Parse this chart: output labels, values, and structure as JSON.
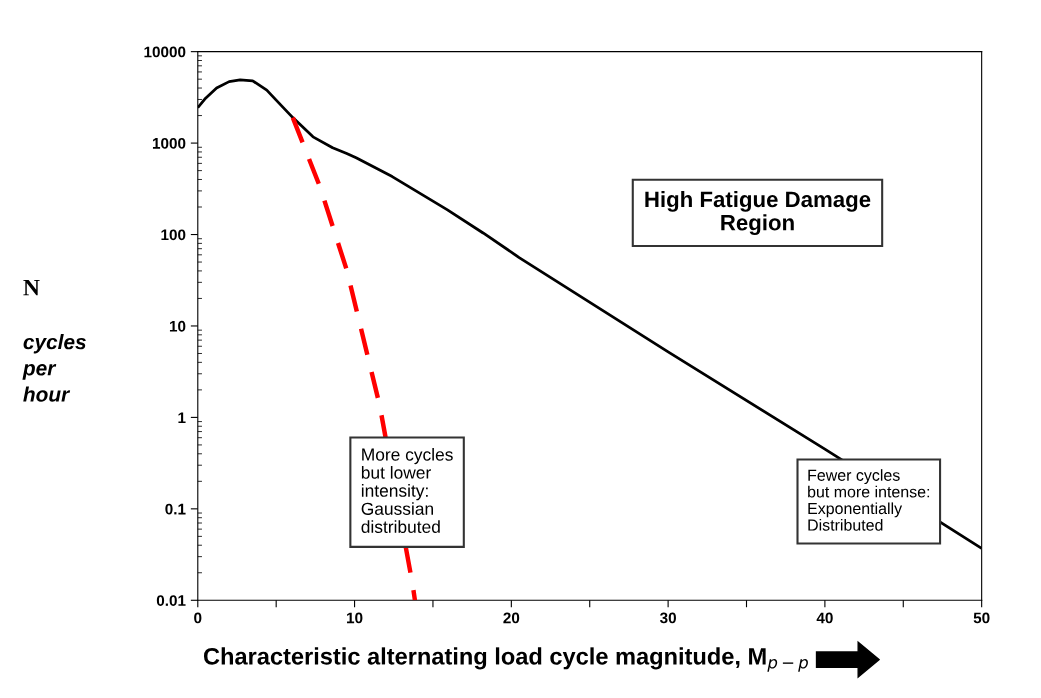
{
  "chart_data": {
    "type": "line",
    "xlabel": "Characteristic alternating load cycle magnitude, M$_{p−p}$",
    "ylabel": "N\ncycles\nper\nhour",
    "log": "y",
    "grid": false,
    "legend": false,
    "marker": "none",
    "xlim": [
      0,
      50
    ],
    "xticks": [
      0,
      {
        "value": 5,
        "label": null
      },
      10,
      {
        "value": 15,
        "label": null
      },
      20,
      {
        "value": 25,
        "label": null
      },
      30,
      {
        "value": 35,
        "label": null
      },
      40,
      {
        "value": 45,
        "label": null
      },
      50
    ],
    "ylim": [
      0.01,
      10000
    ],
    "yticks": [
      {
        "value": 0.01,
        "label": "0.01"
      },
      {
        "value": 0.1,
        "label": "0.1"
      },
      1,
      10,
      100,
      1000,
      10000
    ],
    "series": [
      {
        "color": "#000000",
        "line_style": "solid",
        "x": [
          0,
          0.5,
          1.2,
          2.0,
          2.7,
          3.5,
          4.4,
          5.0,
          6.06,
          7.35,
          8.6,
          9.5,
          10.1,
          12.4,
          15.9,
          18.2,
          20.5,
          30,
          40,
          50
        ],
        "values": [
          2440,
          3100,
          4000,
          4700,
          4900,
          4800,
          3800,
          2950,
          1900,
          1170,
          890,
          770,
          690,
          430,
          187,
          104,
          56,
          5.2,
          0.45,
          0.037
        ]
      },
      {
        "color": "#ff0000",
        "line_style": "dashed",
        "x": [
          6.06,
          7.8,
          9.5,
          11.6,
          13.7,
          13.85
        ],
        "values": [
          1900,
          330,
          41,
          1.36,
          0.015,
          0.01
        ]
      }
    ],
    "annotations": [
      "High Fatigue Damage\nRegion",
      "More cycles\nbut lower\nintensity:\nGaussian\ndistributed",
      "Fewer cycles\nbut more intense:\nExponentially\nDistributed"
    ]
  }
}
